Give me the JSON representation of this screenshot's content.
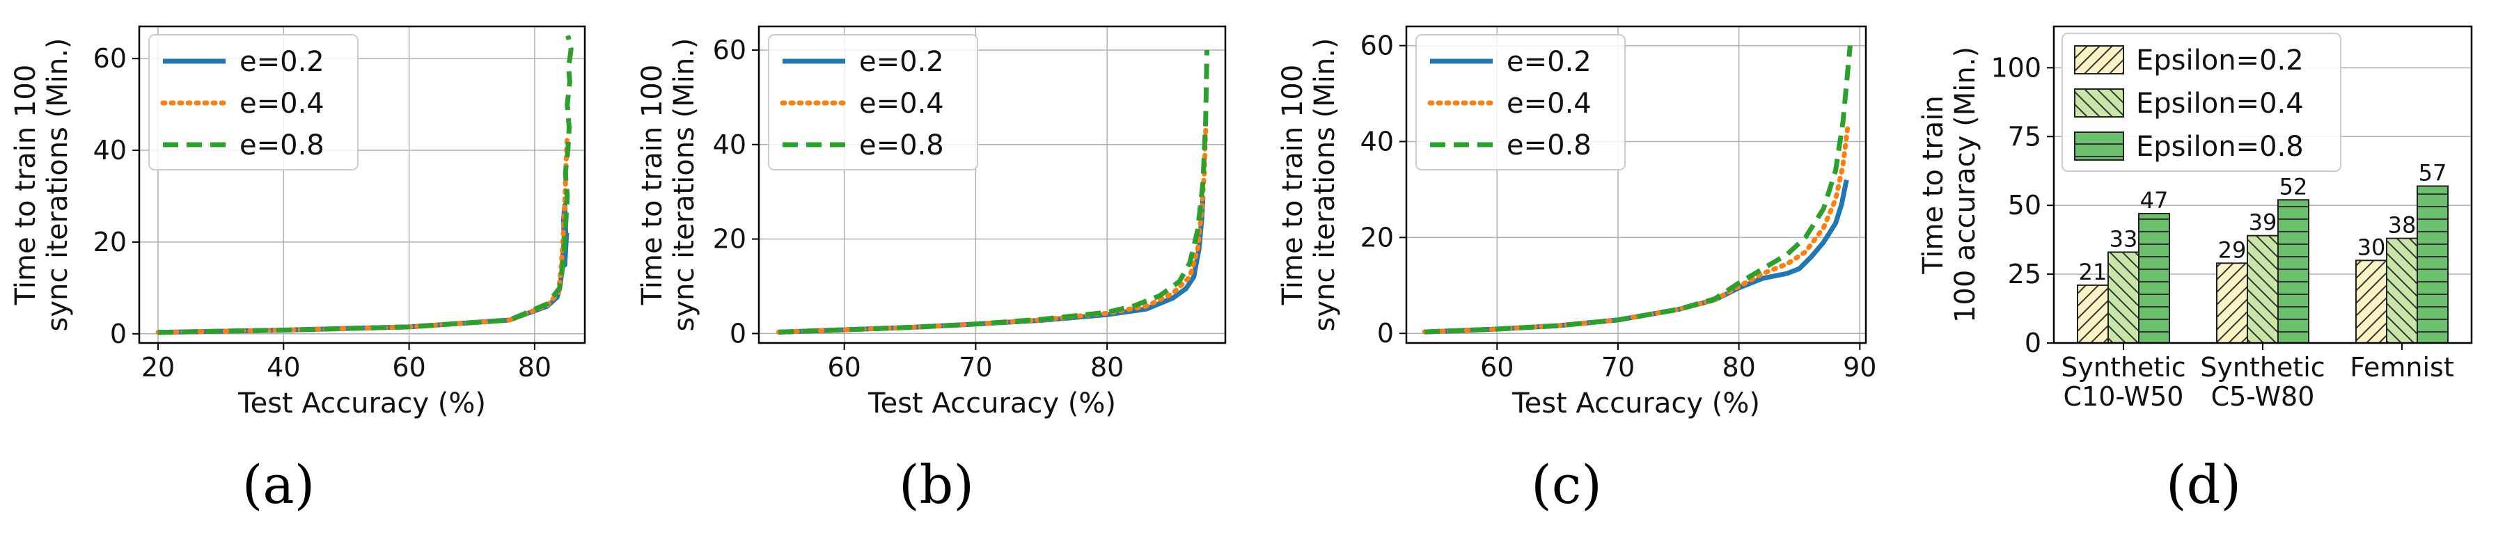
{
  "captions": [
    "(a)",
    "(b)",
    "(c)",
    "(d)"
  ],
  "colors": {
    "e02": "#1f77b4",
    "e04": "#ff7f0e",
    "e08": "#2ca02c",
    "bar_fill_1": "#fbf3c4",
    "bar_fill_2": "#c9e6a8",
    "bar_fill_3": "#6cc06c"
  },
  "chart_data": [
    {
      "type": "line",
      "panel": "a",
      "xlabel": "Test Accuracy (%)",
      "ylabel": "Time to train 100 sync iterations (Min.)",
      "ylabel_lines": [
        "Time to train 100",
        "sync iterations (Min.)"
      ],
      "xlim": [
        17,
        88
      ],
      "ylim": [
        -2,
        67
      ],
      "xticks": [
        20,
        40,
        60,
        80
      ],
      "yticks": [
        0,
        20,
        40,
        60
      ],
      "grid": true,
      "legend_position": "top-left",
      "series": [
        {
          "name": "e=0.2",
          "style": "solid",
          "x": [
            20,
            40,
            60,
            76,
            82,
            83.6,
            84.0,
            84.3,
            84.5,
            84.7,
            84.6,
            84.8,
            84.9,
            85.0,
            84.8,
            85.1
          ],
          "y": [
            0.3,
            0.8,
            1.5,
            3.0,
            6.0,
            8.0,
            10.0,
            13.0,
            17.0,
            21.0,
            25.0,
            28.0,
            24.0,
            20.0,
            15.0,
            22.0
          ]
        },
        {
          "name": "e=0.4",
          "style": "dotted",
          "x": [
            20,
            40,
            60,
            76,
            82,
            83.8,
            84.2,
            84.5,
            84.7,
            84.9,
            85.0,
            85.1,
            85.2
          ],
          "y": [
            0.3,
            0.8,
            1.5,
            3.0,
            6.2,
            9.0,
            14.0,
            20.0,
            26.0,
            32.0,
            37.0,
            40.0,
            43.0
          ]
        },
        {
          "name": "e=0.8",
          "style": "dashed",
          "x": [
            20,
            40,
            60,
            76,
            82,
            84.0,
            84.5,
            84.8,
            85.0,
            85.2,
            84.9,
            85.3,
            85.5,
            85.2,
            85.6,
            85.4,
            85.8,
            85.3
          ],
          "y": [
            0.3,
            0.8,
            1.5,
            3.0,
            6.5,
            10.0,
            15.0,
            20.0,
            25.0,
            30.0,
            35.0,
            40.0,
            45.0,
            50.0,
            55.0,
            58.0,
            62.0,
            65.0
          ]
        }
      ]
    },
    {
      "type": "line",
      "panel": "b",
      "xlabel": "Test Accuracy (%)",
      "ylabel": "Time to train 100 sync iterations (Min.)",
      "ylabel_lines": [
        "Time to train 100",
        "sync iterations (Min.)"
      ],
      "xlim": [
        53.5,
        89
      ],
      "ylim": [
        -2,
        65
      ],
      "xticks": [
        60,
        70,
        80
      ],
      "yticks": [
        0,
        20,
        40,
        60
      ],
      "grid": true,
      "legend_position": "top-left",
      "series": [
        {
          "name": "e=0.2",
          "style": "solid",
          "x": [
            55,
            60,
            65,
            70,
            75,
            80,
            83,
            85,
            86,
            86.6,
            87.0,
            87.2,
            87.3
          ],
          "y": [
            0.3,
            0.8,
            1.3,
            2.0,
            2.8,
            4.0,
            5.2,
            7.5,
            9.5,
            12.0,
            18.0,
            24.0,
            29.0
          ]
        },
        {
          "name": "e=0.4",
          "style": "dotted",
          "x": [
            55,
            60,
            65,
            70,
            75,
            80,
            83,
            85,
            86.3,
            86.9,
            87.2,
            87.4,
            87.5
          ],
          "y": [
            0.3,
            0.8,
            1.3,
            2.0,
            2.9,
            4.3,
            5.8,
            8.5,
            12.0,
            18.0,
            26.0,
            34.0,
            43.0
          ]
        },
        {
          "name": "e=0.8",
          "style": "dashed",
          "x": [
            55,
            60,
            65,
            70,
            75,
            80,
            82,
            84,
            85.5,
            86.3,
            86.9,
            87.3,
            87.5,
            87.6
          ],
          "y": [
            0.3,
            0.8,
            1.3,
            2.0,
            3.0,
            4.5,
            5.8,
            8.0,
            11.0,
            15.0,
            22.0,
            32.0,
            45.0,
            60.0
          ]
        }
      ]
    },
    {
      "type": "line",
      "panel": "c",
      "xlabel": "Test Accuracy (%)",
      "ylabel": "Time to train 100 sync iterations (Min.)",
      "ylabel_lines": [
        "Time to train 100",
        "sync iterations (Min.)"
      ],
      "xlim": [
        52.5,
        90.5
      ],
      "ylim": [
        -2,
        64
      ],
      "xticks": [
        60,
        70,
        80,
        90
      ],
      "yticks": [
        0,
        20,
        40,
        60
      ],
      "grid": true,
      "legend_position": "top-left",
      "series": [
        {
          "name": "e=0.2",
          "style": "solid",
          "x": [
            54,
            60,
            65,
            70,
            75,
            78,
            80,
            82,
            84,
            85,
            86,
            87,
            88,
            88.5,
            88.9
          ],
          "y": [
            0.3,
            0.9,
            1.6,
            2.8,
            5.0,
            7.0,
            9.5,
            11.5,
            12.5,
            13.5,
            16.0,
            19.0,
            23.0,
            27.0,
            32.0
          ]
        },
        {
          "name": "e=0.4",
          "style": "dotted",
          "x": [
            54,
            60,
            65,
            70,
            75,
            78,
            80,
            82,
            84,
            85.5,
            87,
            88,
            88.6,
            89.0
          ],
          "y": [
            0.3,
            0.9,
            1.6,
            2.8,
            5.0,
            7.0,
            9.8,
            12.5,
            14.5,
            17.0,
            22.0,
            28.0,
            35.0,
            43.0
          ]
        },
        {
          "name": "e=0.8",
          "style": "dashed",
          "x": [
            54,
            60,
            65,
            70,
            75,
            78,
            80,
            82,
            84,
            85.5,
            87,
            88,
            88.6,
            89.2
          ],
          "y": [
            0.3,
            0.9,
            1.6,
            2.8,
            5.0,
            7.2,
            10.5,
            13.5,
            16.5,
            20.0,
            26.0,
            34.0,
            44.0,
            60.0
          ]
        }
      ]
    },
    {
      "type": "bar",
      "panel": "d",
      "xlabel": "",
      "ylabel": "Time to train 100 accuracy (Min.)",
      "ylabel_lines": [
        "Time to train",
        "100 accuracy (Min.)"
      ],
      "ylim": [
        0,
        115
      ],
      "yticks": [
        0,
        25,
        50,
        75,
        100
      ],
      "grid": true,
      "legend_position": "top-left",
      "categories": [
        "Synthetic C10-W50",
        "Synthetic C5-W80",
        "Femnist"
      ],
      "category_lines": [
        [
          "Synthetic",
          "C10-W50"
        ],
        [
          "Synthetic",
          "C5-W80"
        ],
        [
          "Femnist"
        ]
      ],
      "series": [
        {
          "name": "Epsilon=0.2",
          "hatch": "diag-right",
          "values": [
            21,
            29,
            30
          ]
        },
        {
          "name": "Epsilon=0.4",
          "hatch": "diag-left",
          "values": [
            33,
            39,
            38
          ]
        },
        {
          "name": "Epsilon=0.8",
          "hatch": "horizontal",
          "values": [
            47,
            52,
            57
          ]
        }
      ]
    }
  ]
}
